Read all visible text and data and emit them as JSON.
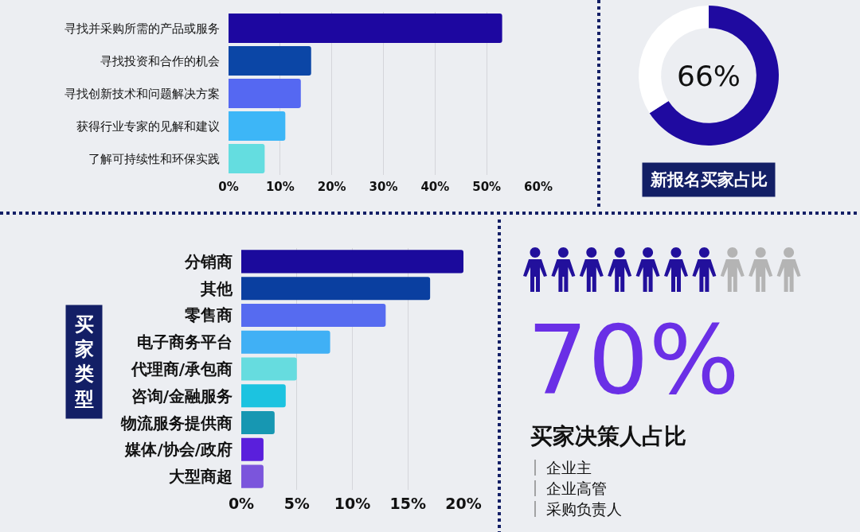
{
  "chart_data": [
    {
      "type": "bar",
      "orientation": "horizontal",
      "categories": [
        "寻找并采购所需的产品或服务",
        "寻找投资和合作的机会",
        "寻找创新技术和问题解决方案",
        "获得行业专家的见解和建议",
        "了解可持续性和环保实践"
      ],
      "values": [
        53,
        16,
        14,
        11,
        7
      ],
      "colors": [
        "#1d07a0",
        "#0b46a6",
        "#5568f2",
        "#3db6f7",
        "#64dde0"
      ],
      "xlim": [
        0,
        60
      ],
      "xticks": [
        {
          "value": 0,
          "label": "0%"
        },
        {
          "value": 10,
          "label": "10%"
        },
        {
          "value": 20,
          "label": "20%"
        },
        {
          "value": 30,
          "label": "30%"
        },
        {
          "value": 40,
          "label": "40%"
        },
        {
          "value": 50,
          "label": "50%"
        },
        {
          "value": 60,
          "label": "60%"
        }
      ],
      "grid": "x"
    },
    {
      "type": "donut",
      "title": "新报名买家占比",
      "categories": [
        null,
        null
      ],
      "values": [
        66,
        34
      ],
      "colors": [
        "#1f0aa0",
        "#ffffff"
      ],
      "value_labels": [
        "66%",
        null
      ]
    },
    {
      "type": "bar",
      "orientation": "horizontal",
      "ylabel": "买家类型",
      "categories": [
        "分销商",
        "其他",
        "零售商",
        "电子商务平台",
        "代理商/承包商",
        "咨询/金融服务",
        "物流服务提供商",
        "媒体/协会/政府",
        "大型商超"
      ],
      "values": [
        20,
        17,
        13,
        8,
        5,
        4,
        3,
        2,
        2
      ],
      "colors": [
        "#1b0a9c",
        "#0a3fa0",
        "#566bf0",
        "#40b0f5",
        "#66dcdf",
        "#1cc3e0",
        "#1797b2",
        "#5a1fdc",
        "#7b55dc"
      ],
      "xlim": [
        0,
        20
      ],
      "xticks": [
        {
          "value": 0,
          "label": "0%"
        },
        {
          "value": 5,
          "label": "5%"
        },
        {
          "value": 10,
          "label": "10%"
        },
        {
          "value": 15,
          "label": "15%"
        },
        {
          "value": 20,
          "label": "20%"
        }
      ],
      "grid": "x"
    },
    {
      "type": "other",
      "title": "买家决策人占比",
      "values": [
        70
      ],
      "value_labels": [
        "70%"
      ],
      "color": "#22109c",
      "annotations": [
        "企业主",
        "企业高管",
        "采购负责人"
      ]
    }
  ]
}
